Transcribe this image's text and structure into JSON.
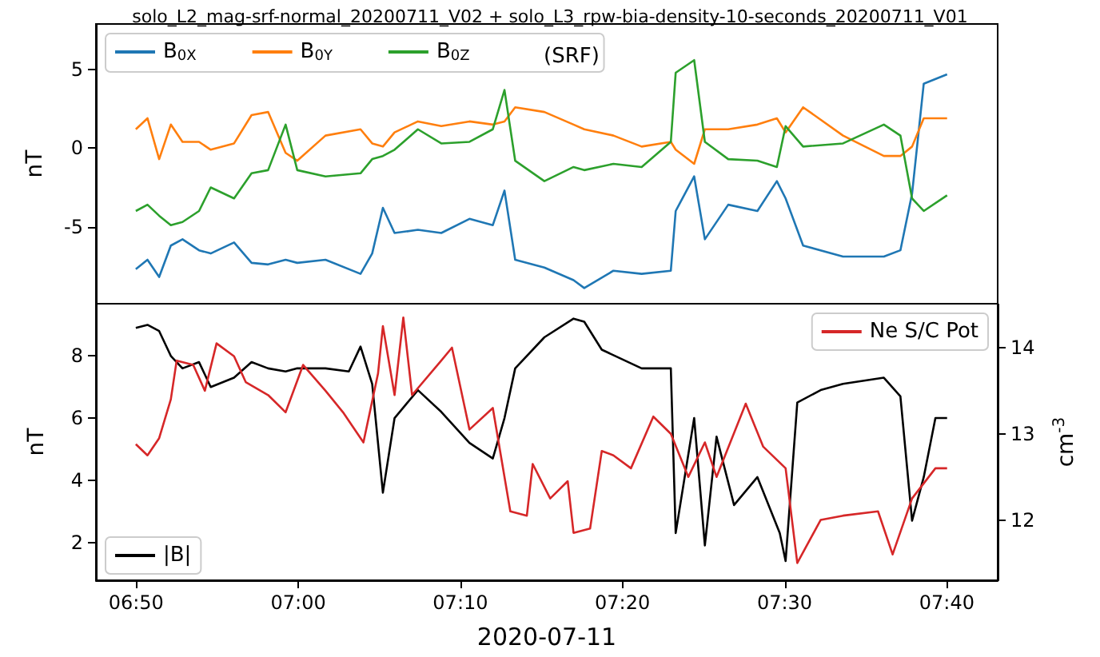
{
  "chart_data": [
    {
      "type": "line",
      "title": "solo_L2_mag-srf-normal_20200711_V02 + solo_L3_rpw-bia-density-10-seconds_20200711_V01",
      "ylabel": "nT",
      "legend_title": "(SRF)",
      "legend": "top left",
      "grid": false,
      "tick_labels": "y",
      "x": [
        6.833,
        6.845,
        6.857,
        6.869,
        6.881,
        6.898,
        6.91,
        6.934,
        6.952,
        6.969,
        6.987,
        6.999,
        7.028,
        7.064,
        7.076,
        7.087,
        7.099,
        7.123,
        7.147,
        7.176,
        7.2,
        7.212,
        7.223,
        7.253,
        7.283,
        7.294,
        7.324,
        7.353,
        7.383,
        7.388,
        7.407,
        7.418,
        7.442,
        7.472,
        7.492,
        7.501,
        7.519,
        7.56,
        7.602,
        7.619,
        7.631,
        7.643,
        7.667
      ],
      "xlim": [
        6.792,
        7.719
      ],
      "xticks": [
        {
          "value": 6.8333,
          "label": null
        },
        {
          "value": 7,
          "label": null
        },
        {
          "value": 7.1667,
          "label": null
        },
        {
          "value": 7.3333,
          "label": null
        },
        {
          "value": 7.5,
          "label": null
        },
        {
          "value": 7.6667,
          "label": null
        }
      ],
      "ylim": [
        -9.9,
        7.9
      ],
      "yticks": [
        -5,
        0,
        5
      ],
      "series": [
        {
          "name": "B$_{0X}$",
          "color": "#1f77b4",
          "values": [
            -7.7,
            -7.1,
            -8.2,
            -6.2,
            -5.8,
            -6.5,
            -6.7,
            -6.0,
            -7.3,
            -7.4,
            -7.1,
            -7.3,
            -7.1,
            -8.0,
            -6.7,
            -3.8,
            -5.4,
            -5.2,
            -5.4,
            -4.5,
            -4.9,
            -2.7,
            -7.1,
            -7.6,
            -8.4,
            -8.9,
            -7.8,
            -8.0,
            -7.8,
            -4.0,
            -1.8,
            -5.8,
            -3.6,
            -4.0,
            -2.1,
            -3.2,
            -6.2,
            -6.9,
            -6.9,
            -6.5,
            -2.9,
            4.1,
            4.7
          ]
        },
        {
          "name": "B$_{0Y}$",
          "color": "#ff7f0e",
          "values": [
            1.2,
            1.9,
            -0.7,
            1.5,
            0.4,
            0.4,
            -0.1,
            0.3,
            2.1,
            2.3,
            -0.3,
            -0.8,
            0.8,
            1.2,
            0.3,
            0.1,
            1.0,
            1.7,
            1.4,
            1.7,
            1.5,
            1.7,
            2.6,
            2.3,
            1.5,
            1.2,
            0.8,
            0.1,
            0.4,
            -0.1,
            -1.0,
            1.2,
            1.2,
            1.5,
            1.9,
            1.0,
            2.6,
            0.8,
            -0.5,
            -0.5,
            0.1,
            1.9,
            1.9
          ]
        },
        {
          "name": "B$_{0Z}$",
          "color": "#2ca02c",
          "values": [
            -4.0,
            -3.6,
            -4.3,
            -4.9,
            -4.7,
            -4.0,
            -2.5,
            -3.2,
            -1.6,
            -1.4,
            1.5,
            -1.4,
            -1.8,
            -1.6,
            -0.7,
            -0.5,
            -0.1,
            1.2,
            0.3,
            0.4,
            1.2,
            3.7,
            -0.8,
            -2.1,
            -1.2,
            -1.4,
            -1.0,
            -1.2,
            0.4,
            4.8,
            5.6,
            0.4,
            -0.7,
            -0.8,
            -1.2,
            1.4,
            0.1,
            0.3,
            1.5,
            0.8,
            -3.2,
            -4.0,
            -3.0
          ]
        }
      ]
    },
    {
      "type": "line",
      "xlabel": "2020-07-11",
      "ylabel": "nT",
      "y2label": "cm$^{-3}$",
      "legend": [
        "bottom left",
        "top right"
      ],
      "grid": false,
      "xlim": [
        6.792,
        7.719
      ],
      "xticks": [
        {
          "value": 6.8333,
          "label": "06:50"
        },
        {
          "value": 7,
          "label": "07:00"
        },
        {
          "value": 7.1667,
          "label": "07:10"
        },
        {
          "value": 7.3333,
          "label": "07:20"
        },
        {
          "value": 7.5,
          "label": "07:30"
        },
        {
          "value": 7.6667,
          "label": "07:40"
        }
      ],
      "ylim": [
        0.78,
        9.68
      ],
      "yticks": [
        2,
        4,
        6,
        8
      ],
      "y2lim": [
        11.3,
        14.51
      ],
      "y2ticks": [
        12,
        13,
        14
      ],
      "series": [
        {
          "name": "|B|",
          "color": "#000000",
          "x": [
            6.833,
            6.845,
            6.857,
            6.869,
            6.881,
            6.898,
            6.91,
            6.934,
            6.952,
            6.969,
            6.987,
            6.999,
            7.028,
            7.052,
            7.064,
            7.076,
            7.087,
            7.099,
            7.123,
            7.147,
            7.176,
            7.2,
            7.212,
            7.223,
            7.253,
            7.283,
            7.294,
            7.312,
            7.353,
            7.383,
            7.388,
            7.407,
            7.418,
            7.43,
            7.448,
            7.472,
            7.495,
            7.501,
            7.513,
            7.537,
            7.56,
            7.602,
            7.619,
            7.631,
            7.643,
            7.655,
            7.667
          ],
          "values": [
            8.9,
            9.0,
            8.8,
            8.0,
            7.6,
            7.8,
            7.0,
            7.3,
            7.8,
            7.6,
            7.5,
            7.6,
            7.6,
            7.5,
            8.3,
            7.1,
            3.6,
            6.0,
            6.9,
            6.2,
            5.2,
            4.7,
            6.0,
            7.6,
            8.6,
            9.2,
            9.1,
            8.2,
            7.6,
            7.6,
            2.3,
            6.0,
            1.9,
            5.4,
            3.2,
            4.1,
            2.3,
            1.4,
            6.5,
            6.9,
            7.1,
            7.3,
            6.7,
            2.7,
            4.1,
            6.0,
            6.0
          ]
        },
        {
          "name": "Ne S/C Pot",
          "color": "#d62728",
          "axis": "y2",
          "x": [
            6.833,
            6.845,
            6.857,
            6.869,
            6.875,
            6.892,
            6.904,
            6.916,
            6.934,
            6.946,
            6.969,
            6.987,
            7.005,
            7.028,
            7.046,
            7.067,
            7.082,
            7.087,
            7.099,
            7.108,
            7.117,
            7.147,
            7.158,
            7.176,
            7.2,
            7.218,
            7.235,
            7.241,
            7.259,
            7.277,
            7.283,
            7.3,
            7.312,
            7.324,
            7.342,
            7.365,
            7.383,
            7.401,
            7.418,
            7.43,
            7.46,
            7.478,
            7.501,
            7.513,
            7.537,
            7.56,
            7.596,
            7.611,
            7.631,
            7.655,
            7.667
          ],
          "values": [
            12.88,
            12.75,
            12.95,
            13.4,
            13.85,
            13.8,
            13.5,
            14.05,
            13.9,
            13.6,
            13.45,
            13.25,
            13.8,
            13.5,
            13.25,
            12.9,
            13.7,
            14.25,
            13.45,
            14.35,
            13.45,
            13.85,
            14.0,
            13.05,
            13.3,
            12.1,
            12.05,
            12.65,
            12.25,
            12.45,
            11.85,
            11.9,
            12.8,
            12.75,
            12.6,
            13.2,
            13.0,
            12.5,
            12.9,
            12.5,
            13.35,
            12.85,
            12.6,
            11.5,
            12.0,
            12.05,
            12.1,
            11.6,
            12.25,
            12.6,
            12.6
          ]
        }
      ]
    }
  ]
}
